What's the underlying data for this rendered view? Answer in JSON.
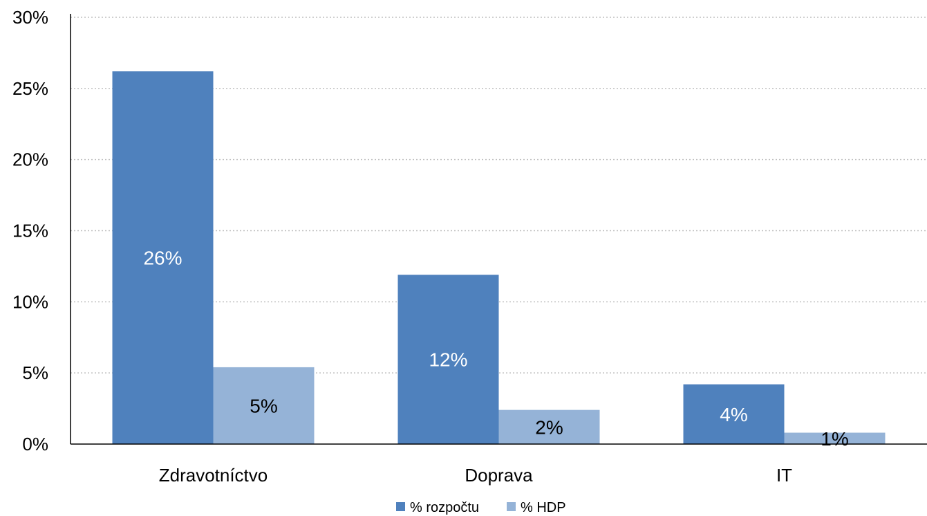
{
  "chart_data": {
    "type": "bar",
    "categories": [
      "Zdravotníctvo",
      "Doprava",
      "IT"
    ],
    "series": [
      {
        "name": "% rozpočtu",
        "values": [
          26,
          12,
          4
        ],
        "raw": [
          26.2,
          11.9,
          4.2
        ],
        "color": "#4f81bd",
        "label_color": "#ffffff"
      },
      {
        "name": "% HDP",
        "values": [
          5,
          2,
          1
        ],
        "raw": [
          5.4,
          2.4,
          0.8
        ],
        "color": "#95b3d7",
        "label_color": "#000000"
      }
    ],
    "ylim": [
      0,
      30
    ],
    "yticks": [
      0,
      5,
      10,
      15,
      20,
      25,
      30
    ],
    "ytick_suffix": "%",
    "grid": true,
    "legend_position": "bottom"
  }
}
